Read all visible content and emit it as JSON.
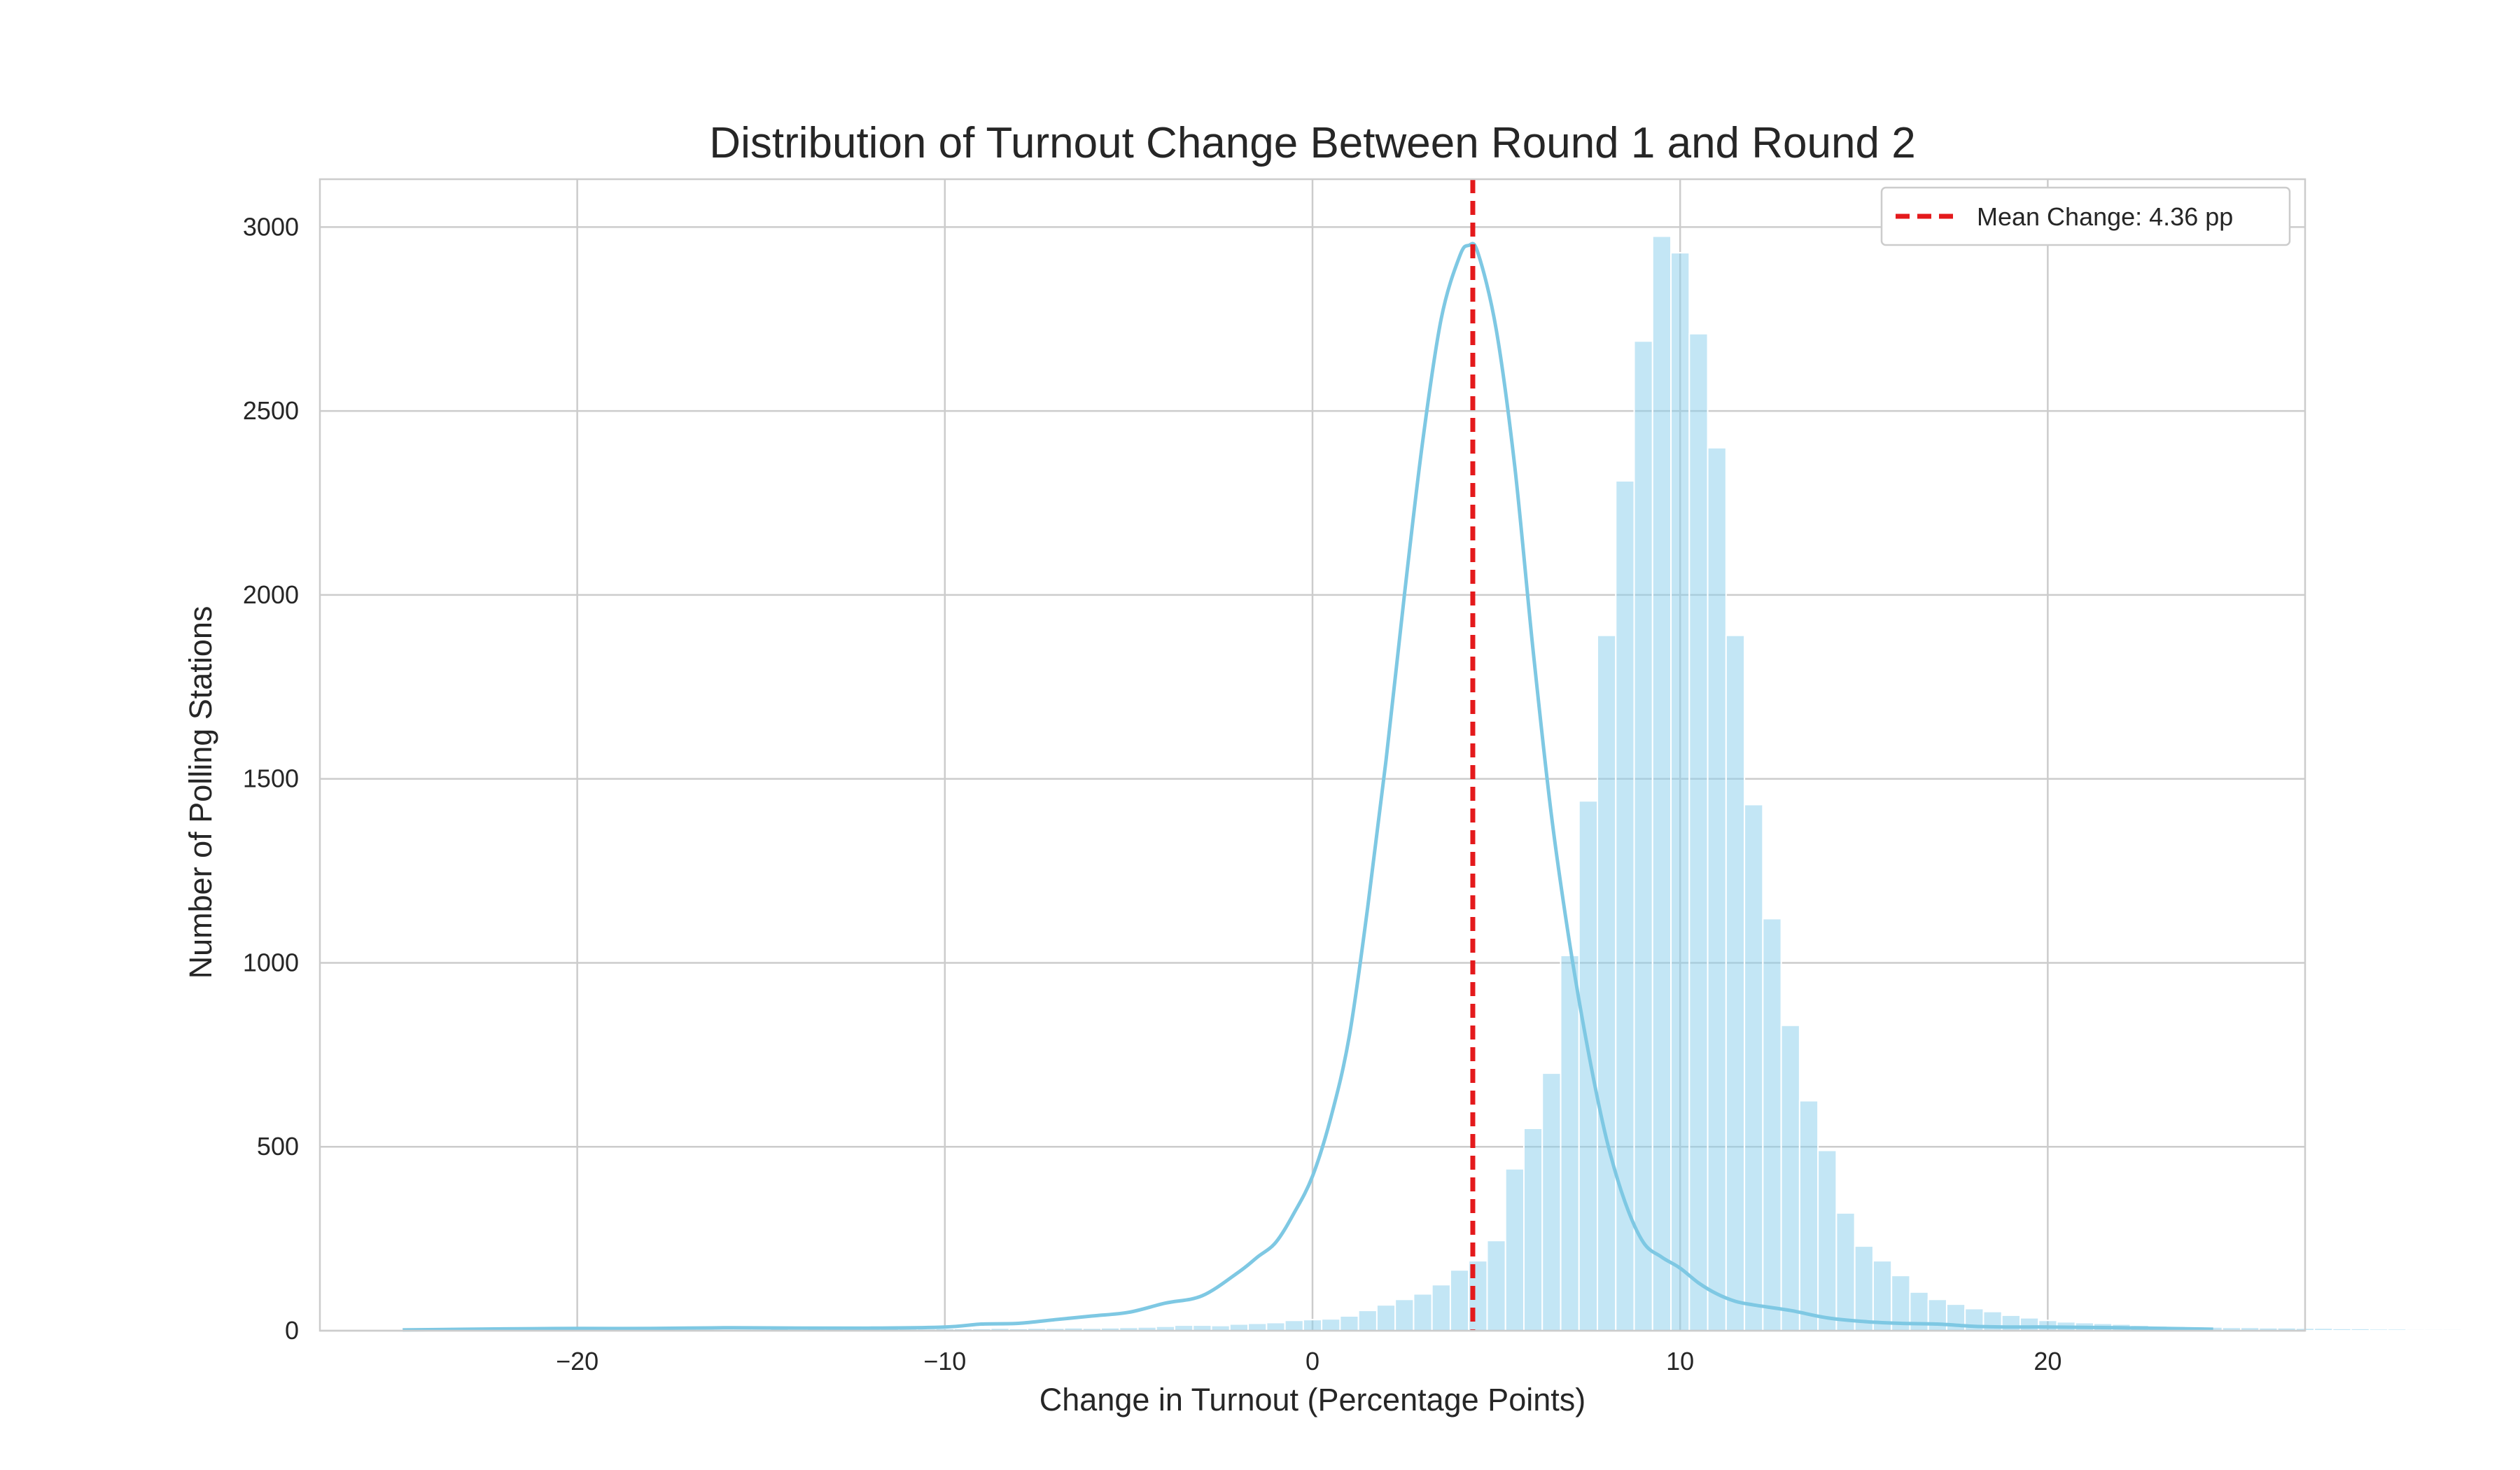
{
  "chart_data": {
    "type": "bar",
    "subtype": "histogram_with_kde",
    "title": "Distribution of Turnout Change Between Round 1 and Round 2",
    "xlabel": "Change in Turnout (Percentage Points)",
    "ylabel": "Number of Polling Stations",
    "xlim": [
      -27,
      27
    ],
    "ylim": [
      0,
      3130
    ],
    "xticks": [
      -20,
      -10,
      0,
      10,
      20
    ],
    "xtick_labels": [
      "−20",
      "−10",
      "0",
      "10",
      "20"
    ],
    "yticks": [
      0,
      500,
      1000,
      1500,
      2000,
      2500,
      3000
    ],
    "ytick_labels": [
      "0",
      "500",
      "1000",
      "1500",
      "2000",
      "2500",
      "3000"
    ],
    "grid": true,
    "bar_color": "#87CEEB",
    "bar_opacity": 0.5,
    "kde_color": "#7EC8E3",
    "bins": {
      "start": -24.75,
      "width": 0.5,
      "counts": [
        2,
        2,
        3,
        2,
        3,
        3,
        2,
        3,
        3,
        3,
        4,
        3,
        4,
        3,
        3,
        4,
        4,
        4,
        4,
        4,
        5,
        4,
        5,
        5,
        5,
        6,
        6,
        5,
        5,
        6,
        6,
        6,
        7,
        6,
        7,
        7,
        8,
        7,
        8,
        9,
        10,
        12,
        15,
        15,
        14,
        18,
        20,
        22,
        28,
        30,
        32,
        40,
        55,
        70,
        85,
        100,
        125,
        165,
        190,
        245,
        440,
        550,
        700,
        1020,
        1440,
        1890,
        2310,
        2690,
        2975,
        2930,
        2710,
        2400,
        1890,
        1430,
        1120,
        830,
        625,
        490,
        320,
        230,
        190,
        150,
        105,
        85,
        72,
        60,
        52,
        42,
        35,
        28,
        24,
        22,
        20,
        18,
        15,
        13,
        12,
        11,
        10,
        9,
        9,
        8,
        8,
        7,
        7,
        6,
        6,
        5,
        5,
        4,
        4,
        4,
        3,
        3,
        3,
        3,
        2,
        2,
        2,
        2,
        2,
        2,
        2,
        1,
        1,
        1,
        1,
        1,
        1,
        1,
        1,
        1,
        1,
        1,
        1,
        1,
        1,
        1,
        1
      ]
    },
    "kde": {
      "x": [
        -24.75,
        -22,
        -20,
        -18,
        -16,
        -14,
        -12,
        -10,
        -9,
        -8,
        -7,
        -6,
        -5,
        -4,
        -3,
        -2,
        -1.5,
        -1,
        -0.5,
        0,
        0.5,
        1,
        1.5,
        2,
        2.5,
        3,
        3.5,
        4,
        4.25,
        4.5,
        5,
        5.5,
        6,
        6.5,
        7,
        7.5,
        8,
        8.5,
        9,
        9.5,
        10,
        10.5,
        11,
        11.5,
        12,
        13,
        14,
        15,
        16,
        17,
        18,
        19,
        20,
        22,
        24.5
      ],
      "y": [
        2,
        5,
        6,
        6,
        8,
        7,
        7,
        10,
        18,
        20,
        30,
        40,
        50,
        75,
        95,
        160,
        200,
        240,
        320,
        420,
        580,
        800,
        1150,
        1550,
        2000,
        2420,
        2750,
        2920,
        2950,
        2930,
        2720,
        2350,
        1850,
        1400,
        1050,
        760,
        520,
        350,
        240,
        200,
        170,
        130,
        100,
        80,
        70,
        55,
        35,
        25,
        20,
        18,
        12,
        10,
        10,
        8,
        4
      ]
    },
    "mean_line": {
      "x": 4.36,
      "color": "#E41A1C",
      "label": "Mean Change: 4.36 pp"
    },
    "legend": {
      "placement": "top-right",
      "entries": [
        "Mean Change: 4.36 pp"
      ]
    }
  }
}
